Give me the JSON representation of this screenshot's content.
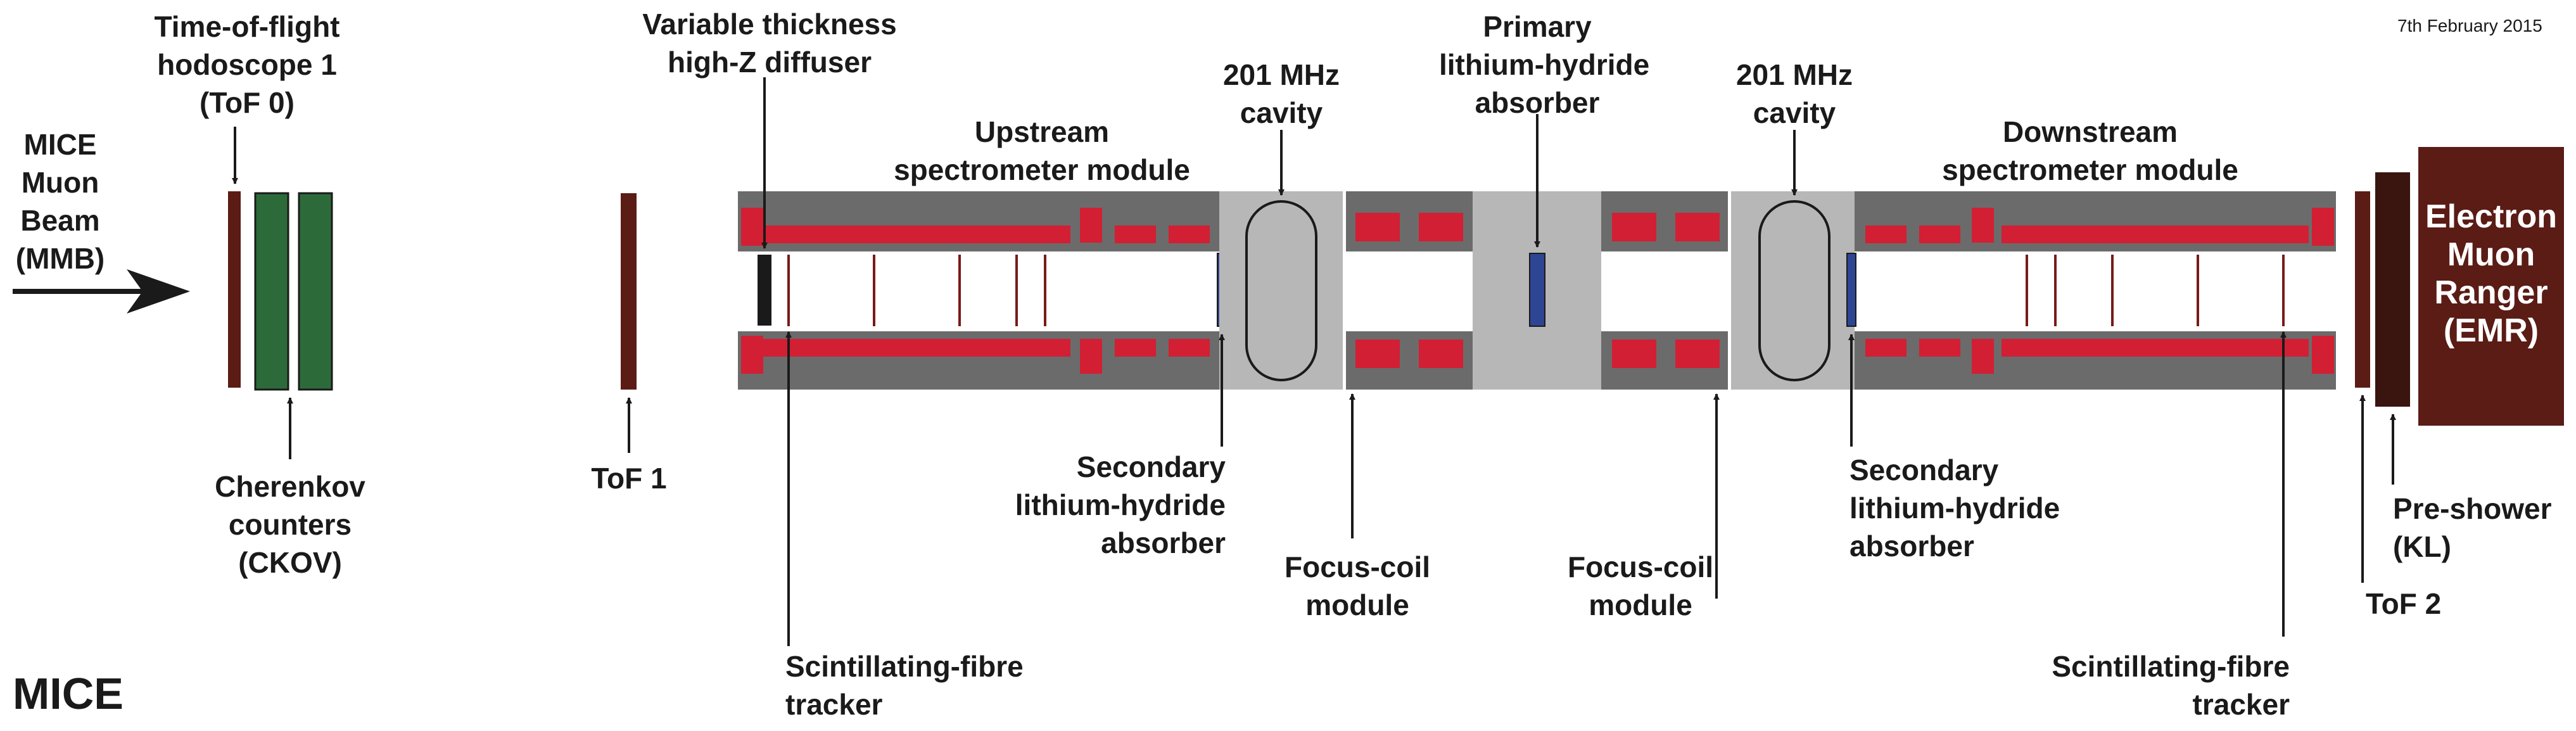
{
  "date": "7th February 2015",
  "title": "MICE",
  "colors": {
    "magnet_body": "#6b6b6b",
    "coil": "#d21f33",
    "cavity_region": "#b7b7b7",
    "absorber": "#2e4593",
    "tof": "#5a1c15",
    "ckov": "#2d6a3a",
    "emr": "#5a1c15",
    "diffuser": "#1a1a1a",
    "fibre_planes": "#7a1a1a"
  },
  "labels": {
    "beam": [
      "MICE",
      "Muon",
      "Beam",
      "(MMB)"
    ],
    "tof0": [
      "Time-of-flight",
      "hodoscope 1",
      "(ToF 0)"
    ],
    "ckov": [
      "Cherenkov",
      "counters",
      "(CKOV)"
    ],
    "tof1": [
      "ToF 1"
    ],
    "diffuser": [
      "Variable thickness",
      "high-Z diffuser"
    ],
    "upstream": [
      "Upstream",
      "spectrometer module"
    ],
    "tracker_up": [
      "Scintillating-fibre",
      "tracker"
    ],
    "cavity_1": [
      "201 MHz",
      "cavity"
    ],
    "secondary_1": [
      "Secondary",
      "lithium-hydride",
      "absorber"
    ],
    "focus_coil_1": [
      "Focus-coil",
      "module"
    ],
    "primary": [
      "Primary",
      "lithium-hydride",
      "absorber"
    ],
    "focus_coil_2": [
      "Focus-coil",
      "module"
    ],
    "cavity_2": [
      "201 MHz",
      "cavity"
    ],
    "secondary_2": [
      "Secondary",
      "lithium-hydride",
      "absorber"
    ],
    "downstream": [
      "Downstream",
      "spectrometer module"
    ],
    "tracker_down": [
      "Scintillating-fibre",
      "tracker"
    ],
    "tof2": [
      "ToF 2"
    ],
    "kl": [
      "Pre-shower",
      "(KL)"
    ],
    "emr": [
      "Electron",
      "Muon",
      "Ranger",
      "(EMR)"
    ]
  }
}
